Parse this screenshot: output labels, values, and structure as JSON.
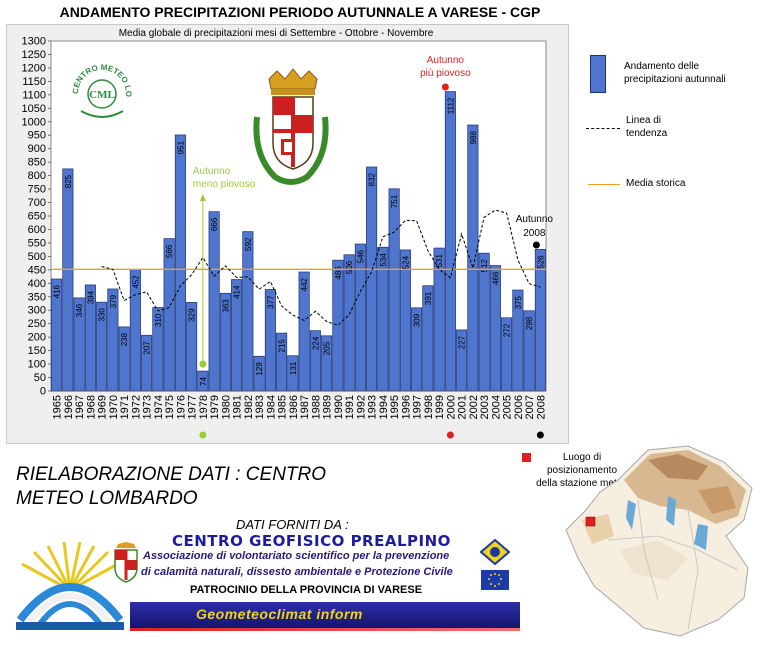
{
  "title": "ANDAMENTO PRECIPITAZIONI PERIODO AUTUNNALE A VARESE - CGP",
  "chart_data": {
    "type": "bar",
    "subtitle": "Media globale di precipitazioni mesi di Settembre - Ottobre - Novembre",
    "categories": [
      "1965",
      "1966",
      "1967",
      "1968",
      "1969",
      "1970",
      "1971",
      "1972",
      "1973",
      "1974",
      "1975",
      "1976",
      "1977",
      "1978",
      "1979",
      "1980",
      "1981",
      "1982",
      "1983",
      "1984",
      "1985",
      "1986",
      "1987",
      "1988",
      "1989",
      "1990",
      "1991",
      "1992",
      "1993",
      "1994",
      "1995",
      "1996",
      "1997",
      "1998",
      "1999",
      "2000",
      "2001",
      "2002",
      "2003",
      "2004",
      "2005",
      "2006",
      "2007",
      "2008"
    ],
    "series": [
      {
        "name": "Andamento delle precipitazioni autunnali",
        "values": [
          416,
          825,
          346,
          394,
          330,
          379,
          238,
          452,
          207,
          310,
          566,
          951,
          329,
          74,
          666,
          363,
          414,
          592,
          129,
          377,
          215,
          131,
          442,
          224,
          205,
          486,
          506,
          546,
          832,
          534,
          751,
          524,
          309,
          391,
          531,
          1112,
          227,
          988,
          512,
          466,
          272,
          375,
          298,
          526
        ],
        "labels": [
          "416",
          "825",
          "346",
          "394",
          "330",
          "379",
          "238",
          "452",
          "207",
          "310",
          "566",
          "951",
          "329",
          "74",
          "666",
          "363",
          "414",
          "592",
          "129",
          "377",
          "215",
          "131",
          "442",
          "224",
          "205",
          "486",
          "506",
          "546",
          "832",
          "534",
          "751",
          "524",
          "309",
          "391",
          "531",
          "1112",
          "227",
          "988",
          "512",
          "466",
          "272",
          "375",
          "298",
          "526"
        ]
      },
      {
        "name": "Linea di tendenza",
        "values": [
          null,
          null,
          null,
          null,
          462,
          452,
          336,
          358,
          368,
          298,
          310,
          390,
          432,
          496,
          426,
          465,
          422,
          424,
          378,
          407,
          316,
          282,
          262,
          296,
          258,
          244,
          283,
          370,
          443,
          573,
          590,
          634,
          632,
          521,
          452,
          420,
          583,
          457,
          645,
          672,
          661,
          487,
          399,
          386
        ]
      },
      {
        "name": "Media storica",
        "value": 452
      }
    ],
    "ylim": [
      0,
      1300
    ],
    "yticks": [
      0,
      50,
      100,
      150,
      200,
      250,
      300,
      350,
      400,
      450,
      500,
      550,
      600,
      650,
      700,
      750,
      800,
      850,
      900,
      950,
      1000,
      1050,
      1100,
      1150,
      1200,
      1250,
      1300
    ],
    "grid": false,
    "legend_position": "right",
    "annotations": [
      {
        "text": "Autunno meno piovoso",
        "x": "1978",
        "color": "#9acd32"
      },
      {
        "text": "Autunno più piovoso",
        "x": "2000",
        "color": "#e02020"
      },
      {
        "text": "Autunno 2008",
        "x": "2008",
        "color": "#000000"
      }
    ],
    "colors": {
      "bar": "#4e76cf",
      "bar_stroke": "#1e2f6e",
      "trend": "#000000",
      "mean": "#f0a020",
      "plot_bg": "#ffffff",
      "frame_bg": "#efefef"
    }
  },
  "legend": [
    {
      "label_lines": [
        "Andamento delle",
        "precipitazioni autunnali"
      ],
      "kind": "bar"
    },
    {
      "label_lines": [
        "Linea di",
        "tendenza"
      ],
      "kind": "trend"
    },
    {
      "label_lines": [
        "Media storica"
      ],
      "kind": "mean"
    }
  ],
  "credits": {
    "rielaborazione": "RIELABORAZIONE DATI : CENTRO METEO LOMBARDO",
    "dati_forniti": "DATI FORNITI DA :",
    "cgp_name": "CENTRO GEOFISICO PREALPINO",
    "assoc_line1": "Associazione di volontariato scientifico per la prevenzione",
    "assoc_line2": "di calamità naturali, dissesto ambientale e Protezione Civile",
    "patrocinio": "PATROCINIO DELLA PROVINCIA DI VARESE",
    "banner": "Geometeoclimat inform"
  },
  "logos": {
    "cml_ring": "CENTRO METEO LOMBARDO",
    "cml_mark": "CML"
  },
  "map": {
    "label": "Luogo di posizionamento della stazione meteo",
    "marker_color": "#e02020"
  }
}
